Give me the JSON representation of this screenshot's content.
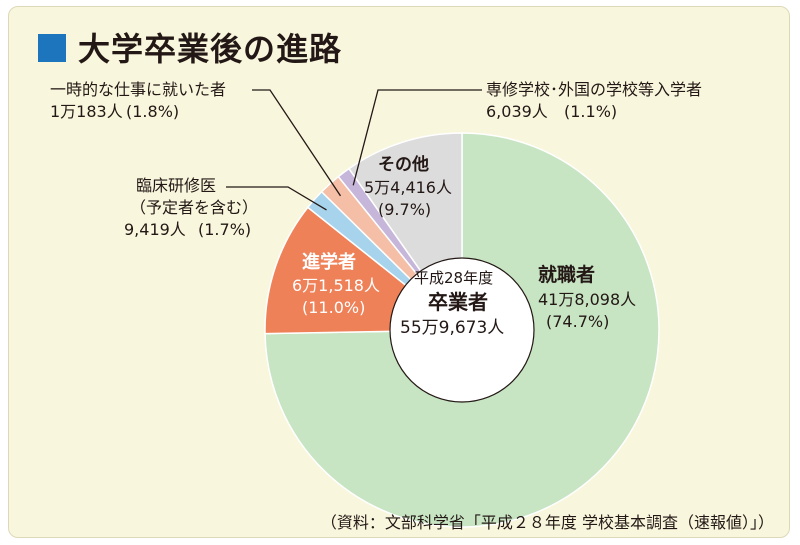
{
  "title": "大学卒業後の進路",
  "source": "（資料：文部科学省「平成２８年度 学校基本調査（速報値）」）",
  "center": {
    "line1": "平成28年度",
    "line2": "卒業者",
    "line3": "55万9,673人"
  },
  "colors": {
    "employment": "#c7e4c3",
    "further_study": "#ef8158",
    "residency": "#a7d3ec",
    "temporary": "#f4bfa6",
    "vocational": "#c6b6da",
    "other": "#dcdcdc"
  },
  "chart_data": {
    "type": "pie",
    "total": "55万9,673人",
    "slices": [
      {
        "key": "employment",
        "label": "就職者",
        "value": 418098,
        "value_text": "41万8,098人",
        "percent_text": "(74.7%)",
        "percent": 74.7
      },
      {
        "key": "further_study",
        "label": "進学者",
        "value": 61518,
        "value_text": "6万1,518人",
        "percent_text": "(11.0%)",
        "percent": 11.0
      },
      {
        "key": "residency",
        "label": "臨床研修医",
        "label2": "（予定者を含む）",
        "value": 9419,
        "value_text": "9,419人",
        "percent_text": "(1.7%)",
        "percent": 1.7
      },
      {
        "key": "temporary",
        "label": "一時的な仕事に就いた者",
        "value": 10183,
        "value_text": "1万183人",
        "percent_text": "(1.8%)",
        "percent": 1.8
      },
      {
        "key": "vocational",
        "label": "専修学校･外国の学校等入学者",
        "value": 6039,
        "value_text": "6,039人",
        "percent_text": "(1.1%)",
        "percent": 1.1
      },
      {
        "key": "other",
        "label": "その他",
        "value": 54416,
        "value_text": "5万4,416人",
        "percent_text": "(9.7%)",
        "percent": 9.7
      }
    ]
  }
}
